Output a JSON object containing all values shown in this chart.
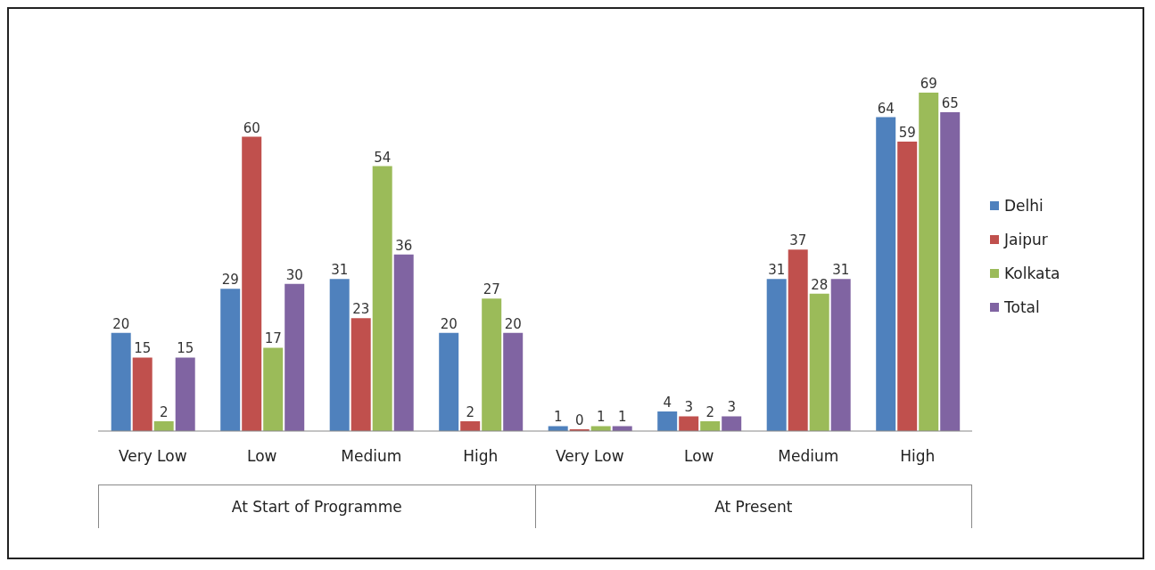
{
  "chart_data": {
    "type": "bar",
    "categories": [
      "Very Low",
      "Low",
      "Medium",
      "High",
      "Very Low",
      "Low",
      "Medium",
      "High"
    ],
    "series": [
      {
        "name": "Delhi",
        "color": "#4f81bd",
        "values": [
          20,
          29,
          31,
          20,
          1,
          4,
          31,
          64
        ]
      },
      {
        "name": "Jaipur",
        "color": "#c0504d",
        "values": [
          15,
          60,
          23,
          2,
          0,
          3,
          37,
          59
        ]
      },
      {
        "name": "Kolkata",
        "color": "#9bbb59",
        "values": [
          2,
          17,
          54,
          27,
          1,
          2,
          28,
          69
        ]
      },
      {
        "name": "Total",
        "color": "#8064a2",
        "values": [
          15,
          30,
          36,
          20,
          1,
          3,
          31,
          65
        ]
      }
    ],
    "annotations": [
      "At Start of Programme",
      "At Present"
    ],
    "data_labels": true,
    "legend": "right",
    "grid": false
  }
}
